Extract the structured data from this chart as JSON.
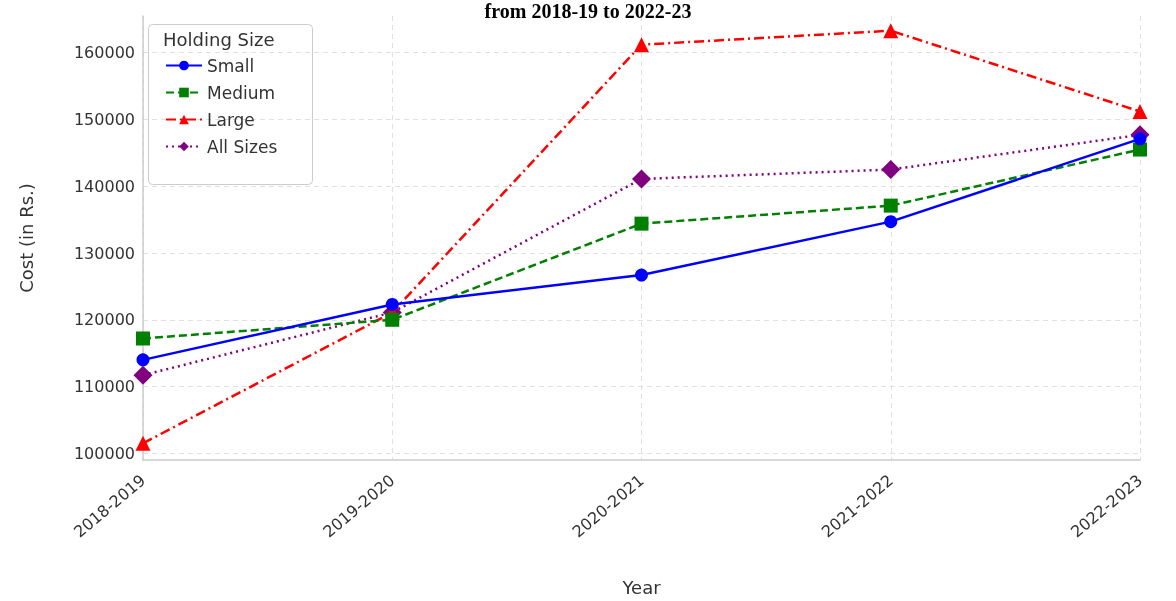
{
  "chart_data": {
    "type": "line",
    "title": "from 2018-19 to 2022-23",
    "xlabel": "Year",
    "ylabel": "Cost (in Rs.)",
    "legend_title": "Holding Size",
    "categories": [
      "2018-2019",
      "2019-2020",
      "2020-2021",
      "2021-2022",
      "2022-2023"
    ],
    "series": [
      {
        "name": "Small",
        "color": "#0000ff",
        "marker": "circle",
        "line_style": "solid",
        "values": [
          114000,
          122300,
          126700,
          134700,
          147100
        ]
      },
      {
        "name": "Medium",
        "color": "#008000",
        "marker": "square",
        "line_style": "dashed",
        "values": [
          117200,
          120000,
          134400,
          137100,
          145500
        ]
      },
      {
        "name": "Large",
        "color": "#ff0000",
        "marker": "triangle",
        "line_style": "dashdot",
        "values": [
          101500,
          121100,
          161200,
          163300,
          151200
        ]
      },
      {
        "name": "All Sizes",
        "color": "#800080",
        "marker": "diamond",
        "line_style": "dotted",
        "values": [
          111700,
          121100,
          141100,
          142500,
          147700
        ]
      }
    ],
    "ylim": [
      99000,
      165500
    ],
    "yticks": [
      100000,
      110000,
      120000,
      130000,
      140000,
      150000,
      160000
    ],
    "grid": true,
    "legend": "top left"
  }
}
